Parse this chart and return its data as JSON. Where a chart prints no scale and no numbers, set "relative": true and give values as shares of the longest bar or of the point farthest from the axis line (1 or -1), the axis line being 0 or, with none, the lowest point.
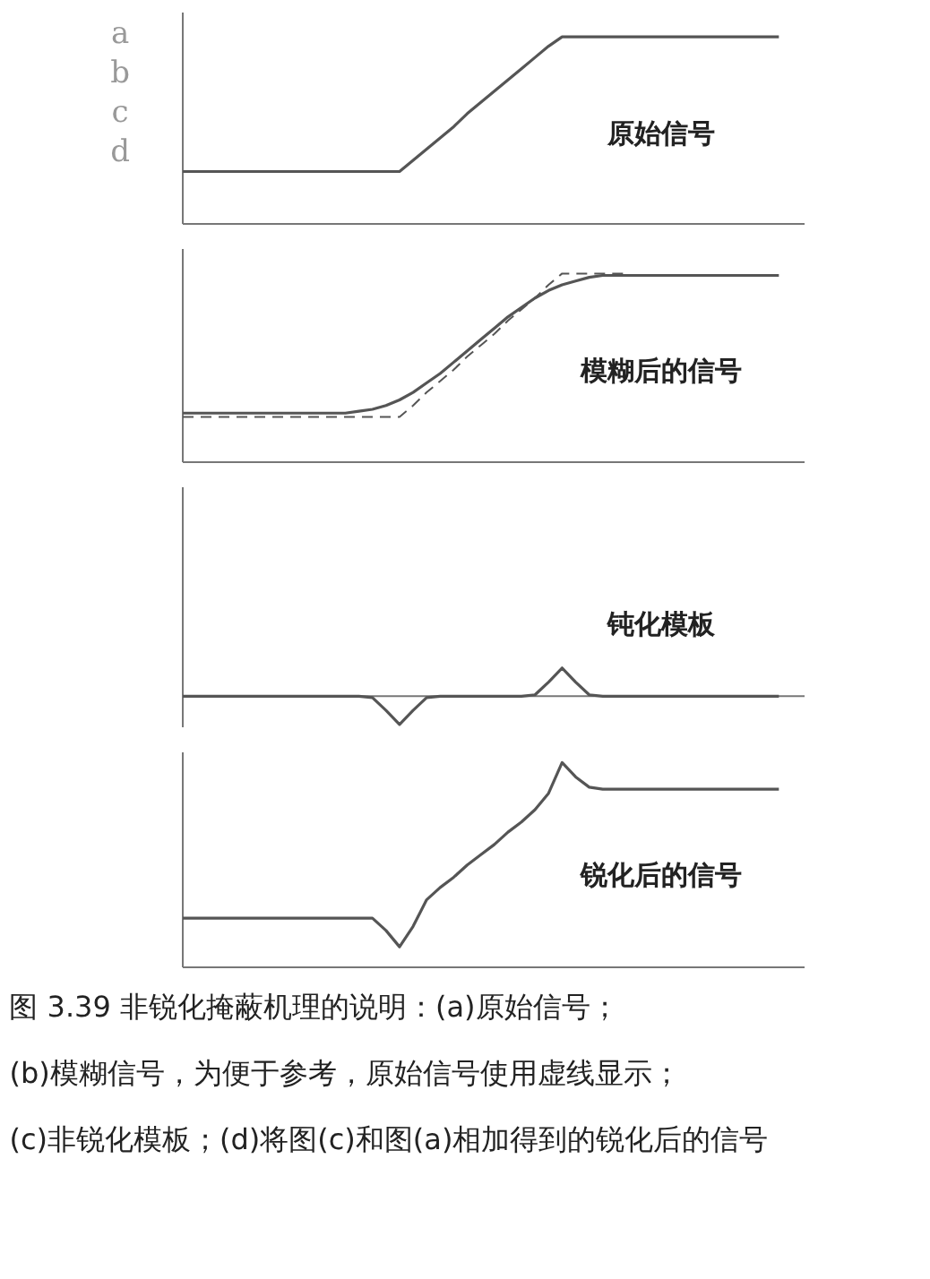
{
  "chart_data": [
    {
      "type": "line",
      "relative": true,
      "categories": [
        null,
        null,
        null,
        null,
        null,
        null,
        null,
        null,
        null,
        null,
        null,
        null,
        null,
        null,
        null,
        null,
        null,
        null,
        null,
        null,
        null,
        null,
        null,
        null,
        null,
        null,
        null,
        null,
        null,
        null,
        null,
        null,
        null,
        null,
        null,
        null,
        null,
        null,
        null,
        null,
        null,
        null,
        null,
        null,
        null
      ],
      "annotations": [
        "a",
        "b",
        "c",
        "d",
        "原始信号"
      ],
      "series": [
        {
          "color": "#555555",
          "line_style": "solid",
          "values": [
            0.28,
            0.28,
            0.28,
            0.28,
            0.28,
            0.28,
            0.28,
            0.28,
            0.28,
            0.28,
            0.28,
            0.28,
            0.28,
            0.28,
            0.28,
            0.28,
            0.28,
            0.34,
            0.4,
            0.46,
            0.52,
            0.59,
            0.65,
            0.71,
            0.77,
            0.83,
            0.89,
            0.95,
            1,
            1,
            1,
            1,
            1,
            1,
            1,
            1,
            1,
            1,
            1,
            1,
            1,
            1,
            1,
            1,
            1
          ]
        }
      ]
    },
    {
      "type": "line",
      "relative": true,
      "categories": [
        null,
        null,
        null,
        null,
        null,
        null,
        null,
        null,
        null,
        null,
        null,
        null,
        null,
        null,
        null,
        null,
        null,
        null,
        null,
        null,
        null,
        null,
        null,
        null,
        null,
        null,
        null,
        null,
        null,
        null,
        null,
        null,
        null,
        null,
        null,
        null,
        null,
        null,
        null,
        null,
        null,
        null,
        null,
        null,
        null
      ],
      "annotations": [
        "模糊后的信号"
      ],
      "series": [
        {
          "color": "#555555",
          "line_style": "solid",
          "values": [
            0.26,
            0.26,
            0.26,
            0.26,
            0.26,
            0.26,
            0.26,
            0.26,
            0.26,
            0.26,
            0.26,
            0.26,
            0.26,
            0.27,
            0.28,
            0.3,
            0.33,
            0.37,
            0.42,
            0.47,
            0.53,
            0.59,
            0.65,
            0.71,
            0.77,
            0.82,
            0.87,
            0.91,
            0.94,
            0.96,
            0.98,
            0.99,
            0.99,
            0.99,
            0.99,
            0.99,
            0.99,
            0.99,
            0.99,
            0.99,
            0.99,
            0.99,
            0.99,
            0.99,
            0.99
          ]
        },
        {
          "color": "#555555",
          "line_style": "dashed",
          "values": [
            0.24,
            0.24,
            0.24,
            0.24,
            0.24,
            0.24,
            0.24,
            0.24,
            0.24,
            0.24,
            0.24,
            0.24,
            0.24,
            0.24,
            0.24,
            0.24,
            0.24,
            0.3,
            0.37,
            0.43,
            0.49,
            0.56,
            0.62,
            0.68,
            0.75,
            0.81,
            0.87,
            0.94,
            1,
            1,
            1,
            1,
            1,
            1,
            null,
            null,
            null,
            null,
            null,
            null,
            null,
            null,
            null,
            null,
            null
          ]
        }
      ]
    },
    {
      "type": "line",
      "relative": true,
      "categories": [
        null,
        null,
        null,
        null,
        null,
        null,
        null,
        null,
        null,
        null,
        null,
        null,
        null,
        null,
        null,
        null,
        null,
        null,
        null,
        null,
        null,
        null,
        null,
        null,
        null,
        null,
        null,
        null,
        null,
        null,
        null,
        null,
        null,
        null,
        null,
        null,
        null,
        null,
        null,
        null,
        null,
        null,
        null,
        null,
        null
      ],
      "annotations": [
        "钝化模板"
      ],
      "series": [
        {
          "color": "#555555",
          "line_style": "solid",
          "values": [
            0,
            0,
            0,
            0,
            0,
            0,
            0,
            0,
            0,
            0,
            0,
            0,
            0,
            0,
            -0.05,
            -0.5,
            -1,
            -0.5,
            -0.05,
            0,
            0,
            0,
            0,
            0,
            0,
            0,
            0.05,
            0.5,
            1,
            0.5,
            0.05,
            0,
            0,
            0,
            0,
            0,
            0,
            0,
            0,
            0,
            0,
            0,
            0,
            0,
            0
          ]
        }
      ]
    },
    {
      "type": "line",
      "relative": true,
      "categories": [
        null,
        null,
        null,
        null,
        null,
        null,
        null,
        null,
        null,
        null,
        null,
        null,
        null,
        null,
        null,
        null,
        null,
        null,
        null,
        null,
        null,
        null,
        null,
        null,
        null,
        null,
        null,
        null,
        null,
        null,
        null,
        null,
        null,
        null,
        null,
        null,
        null,
        null,
        null,
        null,
        null,
        null,
        null,
        null,
        null
      ],
      "annotations": [
        "锐化后的信号"
      ],
      "title": "图 3.39    非锐化掩蔽机理的说明：(a)原始信号；(b)模糊信号，为便于参考，原始信号使用虚线显示；(c)非锐化模板；(d)将图(c)和图(a)相加得到的锐化后的信号",
      "series": [
        {
          "color": "#555555",
          "line_style": "solid",
          "values": [
            0.24,
            0.24,
            0.24,
            0.24,
            0.24,
            0.24,
            0.24,
            0.24,
            0.24,
            0.24,
            0.24,
            0.24,
            0.24,
            0.24,
            0.24,
            0.18,
            0.1,
            0.2,
            0.33,
            0.39,
            0.44,
            0.5,
            0.55,
            0.6,
            0.66,
            0.71,
            0.77,
            0.85,
            1.0,
            0.93,
            0.88,
            0.87,
            0.87,
            0.87,
            0.87,
            0.87,
            0.87,
            0.87,
            0.87,
            0.87,
            0.87,
            0.87,
            0.87,
            0.87,
            0.87
          ]
        }
      ]
    }
  ]
}
